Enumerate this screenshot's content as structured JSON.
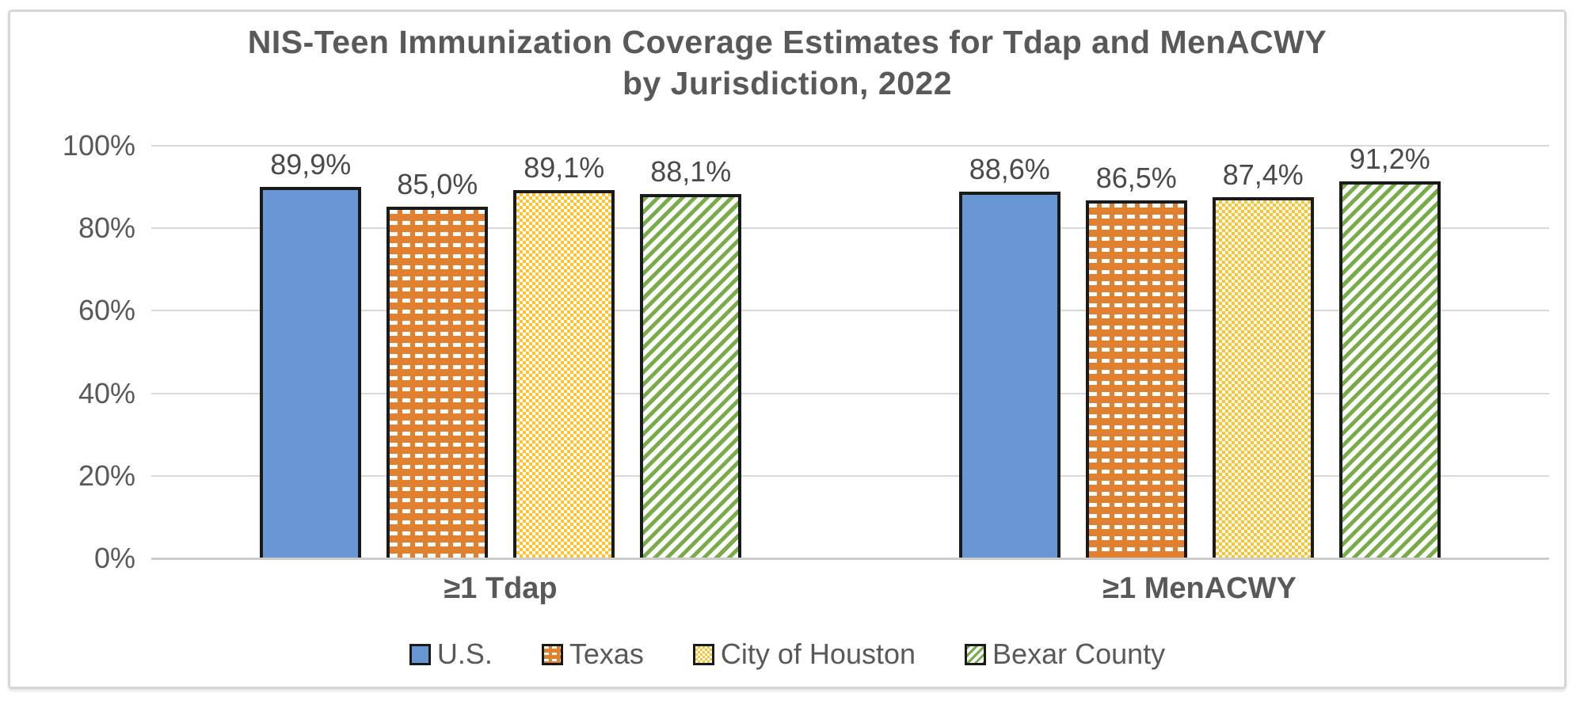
{
  "chart_data": {
    "type": "bar",
    "title": "NIS-Teen Immunization Coverage Estimates for Tdap and MenACWY by Jurisdiction, 2022",
    "title_line1": "NIS-Teen Immunization Coverage Estimates for Tdap and MenACWY",
    "title_line2": "by Jurisdiction, 2022",
    "categories": [
      "≥1 Tdap",
      "≥1 MenACWY"
    ],
    "series": [
      {
        "name": "U.S.",
        "values": [
          89.9,
          88.6
        ],
        "labels": [
          "89,9%",
          "88,6%"
        ],
        "color": "#6997D3",
        "pattern": "solid"
      },
      {
        "name": "Texas",
        "values": [
          85.0,
          86.5
        ],
        "labels": [
          "85,0%",
          "86,5%"
        ],
        "color": "#E0812F",
        "pattern": "brick-dash"
      },
      {
        "name": "City of Houston",
        "values": [
          89.1,
          87.4
        ],
        "labels": [
          "89,1%",
          "87,4%"
        ],
        "color": "#FFC327",
        "pattern": "checker"
      },
      {
        "name": "Bexar County",
        "values": [
          88.1,
          91.2
        ],
        "labels": [
          "88,1%",
          "91,2%"
        ],
        "color": "#76AD49",
        "pattern": "diag-stripe"
      }
    ],
    "xlabel": "",
    "ylabel": "",
    "ylim": [
      0,
      100
    ],
    "yticks": [
      {
        "value": 0,
        "label": "0%"
      },
      {
        "value": 20,
        "label": "20%"
      },
      {
        "value": 40,
        "label": "40%"
      },
      {
        "value": 60,
        "label": "60%"
      },
      {
        "value": 80,
        "label": "80%"
      },
      {
        "value": 100,
        "label": "100%"
      }
    ],
    "grid": true,
    "legend_position": "bottom",
    "colors": {
      "title_text": "#595959",
      "axis_text": "#595959",
      "data_label_text": "#4a4a4a",
      "gridline": "#d9d9d9",
      "bar_outline": "#1a1a1a",
      "frame_border": "#d6d6d6"
    }
  }
}
